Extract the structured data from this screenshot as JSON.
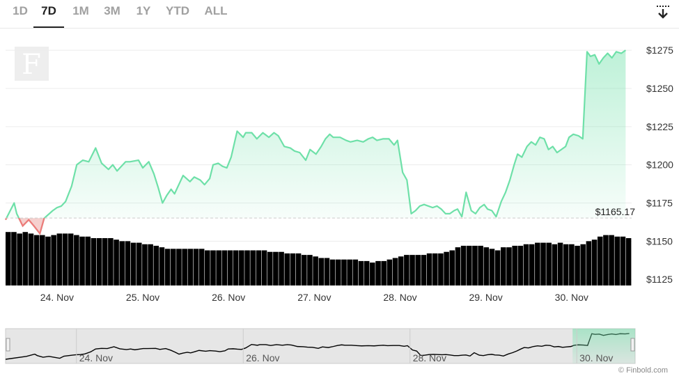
{
  "range_selector": {
    "buttons": [
      "1D",
      "7D",
      "1M",
      "3M",
      "1Y",
      "YTD",
      "ALL"
    ],
    "active": "7D"
  },
  "download_icon": "download-arrow-icon",
  "watermark": "F",
  "credit": "© Finbold.com",
  "colors": {
    "up_line": "#6ee0a8",
    "down_line": "#f07a7a",
    "volume": "#000000",
    "baseline": "#cccccc"
  },
  "chart_data": {
    "type": "area",
    "title": "",
    "xlabel": "",
    "ylabel": "",
    "ylim": [
      1121,
      1286
    ],
    "y_ticks": [
      1125,
      1150,
      1175,
      1200,
      1225,
      1250,
      1275
    ],
    "y_tick_labels": [
      "$1125",
      "$1150",
      "$1175",
      "$1200",
      "$1225",
      "$1250",
      "$1275"
    ],
    "x_range_days": [
      23.4,
      30.7
    ],
    "x_ticks": [
      24,
      25,
      26,
      27,
      28,
      29,
      30
    ],
    "x_tick_labels": [
      "24. Nov",
      "25. Nov",
      "26. Nov",
      "27. Nov",
      "28. Nov",
      "29. Nov",
      "30. Nov"
    ],
    "baseline_value": 1165.17,
    "baseline_label": "$1165.17",
    "series": [
      {
        "x": [
          23.4,
          23.5,
          23.53,
          23.6,
          23.67,
          23.73,
          23.8,
          23.85,
          23.95,
          24.0,
          24.05,
          24.1,
          24.17,
          24.23,
          24.3,
          24.37,
          24.45,
          24.52,
          24.6,
          24.65,
          24.7,
          24.8,
          24.85,
          24.95,
          25.0,
          25.07,
          25.13,
          25.18,
          25.23,
          25.28,
          25.33,
          25.37,
          25.42,
          25.47,
          25.55,
          25.6,
          25.67,
          25.72,
          25.78,
          25.82,
          25.88,
          25.93,
          25.98,
          26.03,
          26.1,
          26.17,
          26.2,
          26.27,
          26.33,
          26.4,
          26.47,
          26.53,
          26.58,
          26.65,
          26.72,
          26.77,
          26.83,
          26.9,
          26.95,
          27.02,
          27.08,
          27.13,
          27.18,
          27.22,
          27.3,
          27.37,
          27.42,
          27.5,
          27.57,
          27.63,
          27.68,
          27.73,
          27.8,
          27.87,
          27.93,
          27.97,
          28.03,
          28.08,
          28.13,
          28.18,
          28.23,
          28.28,
          28.33,
          28.38,
          28.43,
          28.48,
          28.53,
          28.58,
          28.63,
          28.67,
          28.72,
          28.77,
          28.83,
          28.88,
          28.93,
          28.98,
          29.02,
          29.07,
          29.12,
          29.18,
          29.23,
          29.28,
          29.33,
          29.37,
          29.42,
          29.48,
          29.53,
          29.58,
          29.63,
          29.68,
          29.73,
          29.78,
          29.83,
          29.88,
          29.93,
          29.97,
          30.02,
          30.08,
          30.13,
          30.18,
          30.22,
          30.27,
          30.32,
          30.37,
          30.42,
          30.47,
          30.52,
          30.58,
          30.63
        ],
        "values": [
          1164,
          1175,
          1168,
          1160,
          1164,
          1160,
          1155,
          1165,
          1170,
          1172,
          1173,
          1176,
          1186,
          1200,
          1203,
          1202,
          1211,
          1201,
          1197,
          1200,
          1196,
          1202,
          1202,
          1203,
          1198,
          1202,
          1194,
          1185,
          1175,
          1180,
          1184,
          1181,
          1187,
          1193,
          1189,
          1192,
          1190,
          1187,
          1191,
          1200,
          1201,
          1199,
          1198,
          1205,
          1222,
          1218,
          1221,
          1221,
          1217,
          1221,
          1218,
          1221,
          1219,
          1212,
          1211,
          1209,
          1208,
          1203,
          1210,
          1207,
          1212,
          1217,
          1220,
          1218,
          1218,
          1216,
          1215,
          1216,
          1215,
          1217,
          1218,
          1216,
          1217,
          1217,
          1213,
          1216,
          1195,
          1190,
          1168,
          1170,
          1173,
          1174,
          1173,
          1172,
          1173,
          1171,
          1168,
          1168,
          1170,
          1171,
          1166,
          1182,
          1170,
          1168,
          1172,
          1174,
          1171,
          1170,
          1166,
          1176,
          1182,
          1190,
          1200,
          1207,
          1205,
          1212,
          1215,
          1213,
          1218,
          1217,
          1210,
          1212,
          1208,
          1210,
          1212,
          1218,
          1220,
          1219,
          1217,
          1274,
          1271,
          1272,
          1266,
          1270,
          1273,
          1270,
          1274,
          1273,
          1275
        ]
      }
    ],
    "volume": {
      "values": [
        1156,
        1156,
        1155,
        1156,
        1155,
        1154,
        1154,
        1153,
        1154,
        1155,
        1155,
        1155,
        1154,
        1153,
        1153,
        1152,
        1152,
        1152,
        1152,
        1151,
        1150,
        1150,
        1149,
        1149,
        1148,
        1148,
        1147,
        1146,
        1145,
        1145,
        1145,
        1145,
        1145,
        1145,
        1145,
        1144,
        1144,
        1144,
        1144,
        1144,
        1144,
        1144,
        1144,
        1144,
        1144,
        1144,
        1143,
        1143,
        1143,
        1142,
        1142,
        1142,
        1141,
        1141,
        1140,
        1139,
        1139,
        1138,
        1138,
        1138,
        1138,
        1138,
        1137,
        1137,
        1136,
        1137,
        1137,
        1138,
        1139,
        1140,
        1141,
        1141,
        1141,
        1141,
        1142,
        1142,
        1142,
        1143,
        1144,
        1146,
        1147,
        1147,
        1147,
        1147,
        1146,
        1145,
        1144,
        1146,
        1146,
        1147,
        1147,
        1148,
        1148,
        1149,
        1149,
        1149,
        1148,
        1149,
        1148,
        1148,
        1147,
        1148,
        1150,
        1151,
        1153,
        1154,
        1154,
        1153,
        1153,
        1152
      ],
      "base": 1121
    },
    "navigator": {
      "x_tick_labels": [
        "24. Nov",
        "26. Nov",
        "28. Nov",
        "30. Nov"
      ],
      "x_ticks": [
        24,
        26,
        28,
        30
      ]
    }
  }
}
